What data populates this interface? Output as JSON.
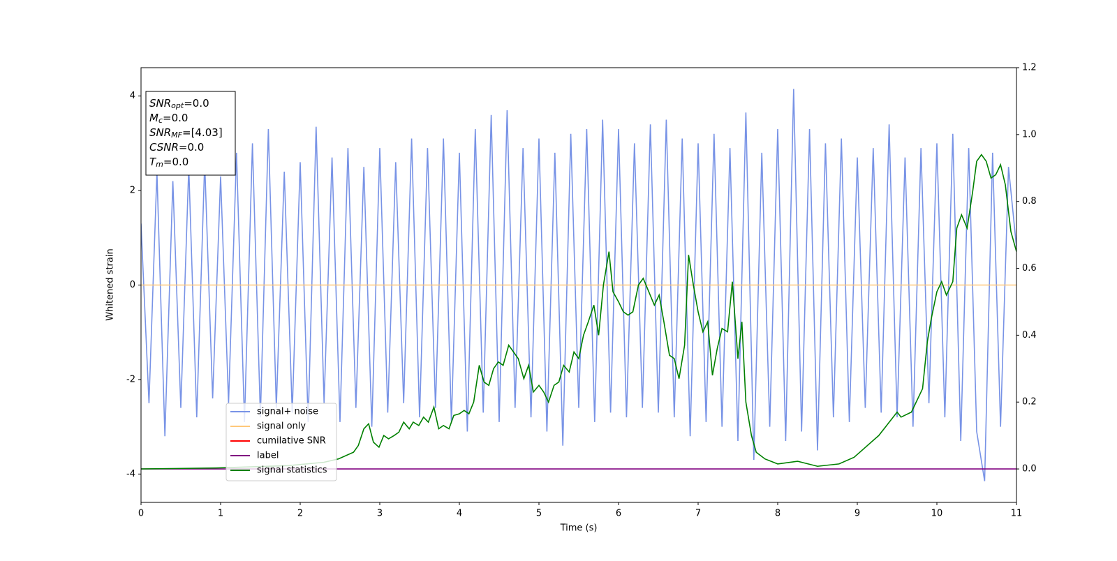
{
  "chart_data": {
    "type": "line",
    "xlabel": "Time (s)",
    "ylabel": "Whitened strain",
    "xlim": [
      0,
      11
    ],
    "xticks": [
      0,
      1,
      2,
      3,
      4,
      5,
      6,
      7,
      8,
      9,
      10,
      11
    ],
    "ylim": [
      -4.6,
      4.6
    ],
    "yticks": [
      -4,
      -2,
      0,
      2,
      4
    ],
    "y2lim": [
      -0.1,
      1.2
    ],
    "y2ticks": [
      {
        "value": 0,
        "label": "0.0"
      },
      0.2,
      0.4,
      0.6,
      0.8,
      {
        "value": 1,
        "label": "1.0"
      },
      1.2
    ],
    "legend": "lower left",
    "annotations": [
      {
        "base": "SNR",
        "sub": "opt",
        "text": "=0.0"
      },
      {
        "base": "M",
        "sub": "c",
        "text": "=0.0"
      },
      {
        "base": "SNR",
        "sub": "MF",
        "text": "=[4.03]"
      },
      {
        "base": "CSNR",
        "sub": null,
        "text": "=0.0"
      },
      {
        "base": "T",
        "sub": "m",
        "text": "=0.0"
      }
    ],
    "series": [
      {
        "name": "signal+ noise",
        "color": "#7893e6",
        "x": [
          0,
          0.1,
          0.2,
          0.3,
          0.4,
          0.5,
          0.6,
          0.7,
          0.8,
          0.9,
          1,
          1.1,
          1.2,
          1.3,
          1.4,
          1.5,
          1.6,
          1.7,
          1.8,
          1.9,
          2,
          2.1,
          2.2,
          2.3,
          2.4,
          2.5,
          2.6,
          2.7,
          2.8,
          2.9,
          3,
          3.1,
          3.2,
          3.3,
          3.4,
          3.5,
          3.6,
          3.7,
          3.8,
          3.9,
          4,
          4.1,
          4.2,
          4.3,
          4.4,
          4.5,
          4.6,
          4.7,
          4.8,
          4.9,
          5,
          5.1,
          5.2,
          5.3,
          5.4,
          5.5,
          5.6,
          5.7,
          5.8,
          5.9,
          6,
          6.1,
          6.2,
          6.3,
          6.4,
          6.5,
          6.6,
          6.7,
          6.8,
          6.9,
          7,
          7.1,
          7.2,
          7.3,
          7.4,
          7.5,
          7.6,
          7.7,
          7.8,
          7.9,
          8,
          8.1,
          8.2,
          8.3,
          8.4,
          8.5,
          8.6,
          8.7,
          8.8,
          8.9,
          9,
          9.1,
          9.2,
          9.3,
          9.4,
          9.5,
          9.6,
          9.7,
          9.8,
          9.9,
          10,
          10.1,
          10.2,
          10.3,
          10.4,
          10.5,
          10.6,
          10.7,
          10.8,
          10.9,
          11
        ],
        "values": [
          1.3,
          -2.5,
          2.4,
          -3.2,
          2.2,
          -2.6,
          2.5,
          -2.8,
          2.6,
          -2.4,
          2.3,
          -2.5,
          2.8,
          -2.9,
          3.0,
          -2.8,
          3.3,
          -2.6,
          2.4,
          -2.7,
          2.6,
          -2.9,
          3.35,
          -2.5,
          2.7,
          -2.9,
          2.9,
          -2.6,
          2.5,
          -3.0,
          2.9,
          -2.7,
          2.6,
          -2.5,
          3.1,
          -2.8,
          2.9,
          -2.6,
          3.1,
          -2.9,
          2.8,
          -3.1,
          3.3,
          -2.7,
          3.6,
          -2.9,
          3.7,
          -2.6,
          2.9,
          -2.8,
          3.1,
          -3.1,
          2.8,
          -3.4,
          3.2,
          -2.6,
          3.3,
          -2.9,
          3.5,
          -2.7,
          3.3,
          -2.8,
          3.0,
          -2.6,
          3.4,
          -2.7,
          3.5,
          -2.8,
          3.1,
          -3.2,
          3.0,
          -2.9,
          3.2,
          -3.0,
          2.9,
          -3.3,
          3.65,
          -3.7,
          2.8,
          -3.0,
          3.3,
          -3.3,
          4.15,
          -3.1,
          3.3,
          -3.5,
          3.0,
          -2.8,
          3.1,
          -2.9,
          2.7,
          -2.6,
          2.9,
          -2.7,
          3.4,
          -2.8,
          2.7,
          -3.0,
          2.9,
          -2.5,
          3.0,
          -2.8,
          3.2,
          -3.3,
          2.9,
          -3.1,
          -4.15,
          2.8,
          -3.0,
          2.5,
          0.8
        ]
      },
      {
        "name": "signal only",
        "color": "#ffc87a",
        "x": [
          0,
          11
        ],
        "values": [
          0,
          0
        ]
      },
      {
        "name": "cumilative SNR",
        "color": "#ff0000",
        "x": [],
        "values": []
      },
      {
        "name": "label",
        "color": "#800080",
        "axis": "y2",
        "x": [
          0,
          11
        ],
        "values": [
          0,
          0
        ]
      },
      {
        "name": "signal statistics",
        "color": "#008000",
        "axis": "y2",
        "x": [
          0,
          0.94,
          1.85,
          2.3,
          2.48,
          2.67,
          2.73,
          2.8,
          2.86,
          2.92,
          2.99,
          3.05,
          3.11,
          3.18,
          3.24,
          3.3,
          3.37,
          3.42,
          3.49,
          3.55,
          3.61,
          3.68,
          3.74,
          3.8,
          3.87,
          3.93,
          4.0,
          4.06,
          4.12,
          4.18,
          4.25,
          4.31,
          4.37,
          4.43,
          4.49,
          4.55,
          4.62,
          4.68,
          4.74,
          4.81,
          4.87,
          4.93,
          5.0,
          5.06,
          5.12,
          5.19,
          5.25,
          5.31,
          5.38,
          5.44,
          5.5,
          5.56,
          5.62,
          5.69,
          5.75,
          5.81,
          5.88,
          5.93,
          6.0,
          6.06,
          6.12,
          6.18,
          6.25,
          6.31,
          6.38,
          6.45,
          6.51,
          6.57,
          6.64,
          6.7,
          6.76,
          6.83,
          6.88,
          6.94,
          7.0,
          7.06,
          7.12,
          7.18,
          7.24,
          7.3,
          7.37,
          7.43,
          7.5,
          7.55,
          7.6,
          7.67,
          7.73,
          7.84,
          8.0,
          8.25,
          8.5,
          8.77,
          8.96,
          9.27,
          9.5,
          9.55,
          9.68,
          9.74,
          9.82,
          9.88,
          9.93,
          10.0,
          10.06,
          10.12,
          10.2,
          10.25,
          10.31,
          10.38,
          10.45,
          10.5,
          10.56,
          10.62,
          10.68,
          10.74,
          10.8,
          10.86,
          10.93,
          11
        ],
        "values": [
          0,
          0.003,
          0.01,
          0.02,
          0.03,
          0.05,
          0.07,
          0.12,
          0.135,
          0.08,
          0.065,
          0.1,
          0.09,
          0.1,
          0.11,
          0.14,
          0.12,
          0.14,
          0.13,
          0.155,
          0.14,
          0.185,
          0.12,
          0.13,
          0.12,
          0.16,
          0.165,
          0.175,
          0.165,
          0.2,
          0.31,
          0.26,
          0.25,
          0.3,
          0.32,
          0.31,
          0.37,
          0.35,
          0.33,
          0.27,
          0.31,
          0.23,
          0.25,
          0.23,
          0.2,
          0.25,
          0.26,
          0.31,
          0.29,
          0.35,
          0.33,
          0.4,
          0.44,
          0.49,
          0.4,
          0.55,
          0.65,
          0.53,
          0.5,
          0.47,
          0.46,
          0.47,
          0.55,
          0.57,
          0.53,
          0.49,
          0.52,
          0.44,
          0.34,
          0.33,
          0.27,
          0.37,
          0.64,
          0.55,
          0.47,
          0.41,
          0.44,
          0.28,
          0.36,
          0.42,
          0.41,
          0.56,
          0.33,
          0.44,
          0.2,
          0.1,
          0.05,
          0.03,
          0.015,
          0.023,
          0.008,
          0.015,
          0.035,
          0.1,
          0.17,
          0.155,
          0.17,
          0.2,
          0.24,
          0.38,
          0.45,
          0.53,
          0.56,
          0.52,
          0.56,
          0.72,
          0.76,
          0.72,
          0.83,
          0.92,
          0.94,
          0.92,
          0.87,
          0.88,
          0.91,
          0.85,
          0.71,
          0.65
        ]
      }
    ]
  }
}
